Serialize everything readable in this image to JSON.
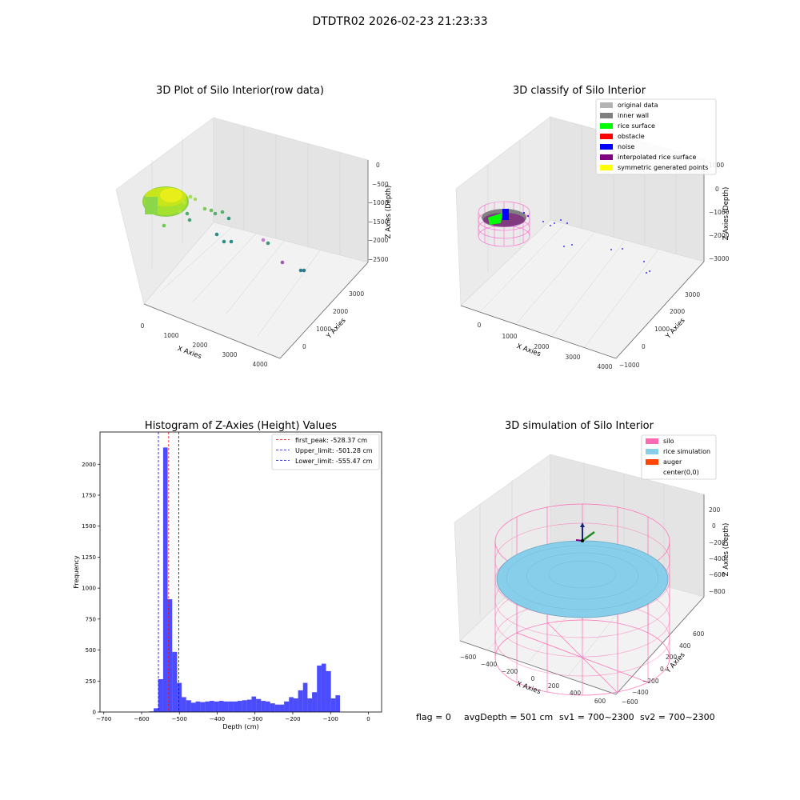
{
  "suptitle": "DTDTR02 2026-02-23 21:23:33",
  "panels": {
    "raw": {
      "title": "3D Plot of Silo Interior(row data)",
      "xlabel": "X Axies",
      "ylabel": "Y Axies",
      "zlabel": "Z Axies (Depth)",
      "xticks": [
        "0",
        "1000",
        "2000",
        "3000",
        "4000"
      ],
      "yticks": [
        "0",
        "1000",
        "2000",
        "3000"
      ],
      "zticks": [
        "0",
        "−500",
        "−1000",
        "−1500",
        "−2000",
        "−2500"
      ]
    },
    "classify": {
      "title": "3D classify of Silo Interior",
      "xlabel": "X Axies",
      "ylabel": "Y Axies",
      "zlabel": "Z Axies (Depth)",
      "xticks": [
        "0",
        "1000",
        "2000",
        "3000",
        "4000"
      ],
      "yticks": [
        "−1000",
        "0",
        "1000",
        "2000",
        "3000"
      ],
      "zticks": [
        "1000",
        "0",
        "−1000",
        "−2000",
        "−3000"
      ],
      "legend": [
        {
          "label": "original data",
          "color": "#b3b3b3"
        },
        {
          "label": "inner wall",
          "color": "#808080"
        },
        {
          "label": "rice surface",
          "color": "#00ff00"
        },
        {
          "label": "obstacle",
          "color": "#ff0000"
        },
        {
          "label": "noise",
          "color": "#0000ff"
        },
        {
          "label": "interpolated rice surface",
          "color": "#800080"
        },
        {
          "label": "symmetric generated points",
          "color": "#ffff00"
        }
      ]
    },
    "simulation": {
      "title": "3D simulation of Silo Interior",
      "xlabel": "X Axies",
      "ylabel": "Y Axies",
      "zlabel": "Z Axies (Depth)",
      "xticks": [
        "−600",
        "−400",
        "−200",
        "0",
        "200",
        "400",
        "600"
      ],
      "yticks": [
        "−600",
        "−400",
        "−200",
        "0",
        "200",
        "400",
        "600"
      ],
      "zticks": [
        "200",
        "0",
        "−200",
        "−400",
        "−600",
        "−800"
      ],
      "legend": [
        {
          "label": "silo",
          "color": "#ff69b4"
        },
        {
          "label": "rice simulation",
          "color": "#87ceeb"
        },
        {
          "label": "auger",
          "color": "#ff4500"
        },
        {
          "label": "center(0,0)",
          "color": "#ffffff"
        }
      ]
    }
  },
  "footer": {
    "flag": "flag = 0",
    "avg": "avgDepth = 501 cm",
    "sv1": "sv1 = 700~2300",
    "sv2": "sv2 = 700~2300"
  },
  "chart_data": {
    "type": "bar",
    "title": "Histogram of Z-Axies (Height) Values",
    "xlabel": "Depth (cm)",
    "ylabel": "Frequency",
    "xlim": [
      -710,
      35
    ],
    "ylim": [
      0,
      2260
    ],
    "xticks": [
      -700,
      -600,
      -500,
      -400,
      -300,
      -200,
      -100,
      0
    ],
    "yticks": [
      0,
      250,
      500,
      750,
      1000,
      1250,
      1500,
      1750,
      2000
    ],
    "bar_color": "#0000ff",
    "bins": [
      {
        "x0": -580,
        "x1": -568,
        "value": 5
      },
      {
        "x0": -568,
        "x1": -556,
        "value": 30
      },
      {
        "x0": -556,
        "x1": -543,
        "value": 265
      },
      {
        "x0": -543,
        "x1": -531,
        "value": 2135
      },
      {
        "x0": -531,
        "x1": -519,
        "value": 910
      },
      {
        "x0": -519,
        "x1": -506,
        "value": 485
      },
      {
        "x0": -506,
        "x1": -494,
        "value": 235
      },
      {
        "x0": -494,
        "x1": -482,
        "value": 120
      },
      {
        "x0": -482,
        "x1": -469,
        "value": 95
      },
      {
        "x0": -469,
        "x1": -457,
        "value": 75
      },
      {
        "x0": -457,
        "x1": -445,
        "value": 85
      },
      {
        "x0": -445,
        "x1": -432,
        "value": 80
      },
      {
        "x0": -432,
        "x1": -420,
        "value": 85
      },
      {
        "x0": -420,
        "x1": -408,
        "value": 90
      },
      {
        "x0": -408,
        "x1": -395,
        "value": 85
      },
      {
        "x0": -395,
        "x1": -383,
        "value": 90
      },
      {
        "x0": -383,
        "x1": -371,
        "value": 85
      },
      {
        "x0": -371,
        "x1": -358,
        "value": 85
      },
      {
        "x0": -358,
        "x1": -346,
        "value": 85
      },
      {
        "x0": -346,
        "x1": -334,
        "value": 90
      },
      {
        "x0": -334,
        "x1": -321,
        "value": 95
      },
      {
        "x0": -321,
        "x1": -309,
        "value": 100
      },
      {
        "x0": -309,
        "x1": -297,
        "value": 125
      },
      {
        "x0": -297,
        "x1": -284,
        "value": 105
      },
      {
        "x0": -284,
        "x1": -272,
        "value": 90
      },
      {
        "x0": -272,
        "x1": -260,
        "value": 85
      },
      {
        "x0": -260,
        "x1": -247,
        "value": 70
      },
      {
        "x0": -247,
        "x1": -235,
        "value": 60
      },
      {
        "x0": -235,
        "x1": -223,
        "value": 60
      },
      {
        "x0": -223,
        "x1": -210,
        "value": 85
      },
      {
        "x0": -210,
        "x1": -198,
        "value": 120
      },
      {
        "x0": -198,
        "x1": -186,
        "value": 110
      },
      {
        "x0": -186,
        "x1": -173,
        "value": 175
      },
      {
        "x0": -173,
        "x1": -161,
        "value": 235
      },
      {
        "x0": -161,
        "x1": -149,
        "value": 110
      },
      {
        "x0": -149,
        "x1": -136,
        "value": 160
      },
      {
        "x0": -136,
        "x1": -124,
        "value": 375
      },
      {
        "x0": -124,
        "x1": -112,
        "value": 390
      },
      {
        "x0": -112,
        "x1": -99,
        "value": 330
      },
      {
        "x0": -99,
        "x1": -87,
        "value": 110
      },
      {
        "x0": -87,
        "x1": -75,
        "value": 135
      }
    ],
    "reference_lines": [
      {
        "label": "first_peak: -528.37 cm",
        "x": -528.37,
        "color": "#ff0000"
      },
      {
        "label": "Upper_limit: -501.28 cm",
        "x": -501.28,
        "color": "#0000ff"
      },
      {
        "label": "Lower_limit: -555.47 cm",
        "x": -555.47,
        "color": "#0000ff"
      }
    ],
    "legend": "top-right"
  }
}
